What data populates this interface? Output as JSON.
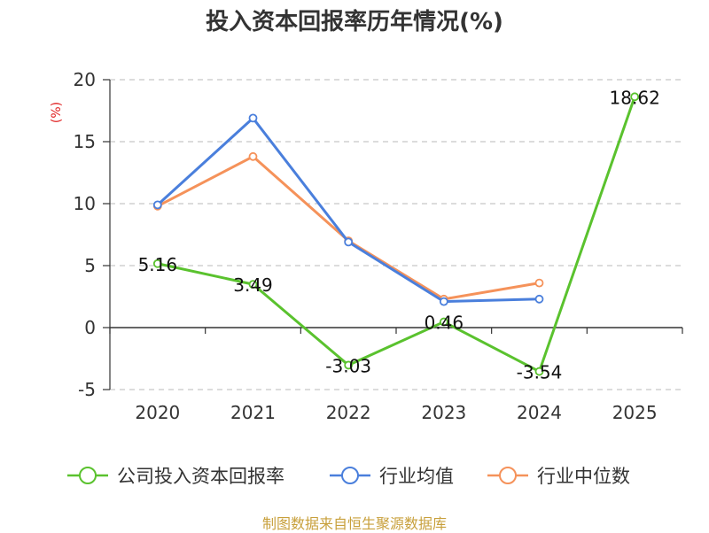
{
  "title": "投入资本回报率历年情况(%)",
  "source": "制图数据来自恒生聚源数据库",
  "chart_data": {
    "type": "line",
    "title": "投入资本回报率历年情况(%)",
    "ylabel": "(%)",
    "categories": [
      "2020",
      "2021",
      "2022",
      "2023",
      "2024",
      "2025"
    ],
    "ylim": [
      -5,
      20
    ],
    "yticks": [
      -5,
      0,
      5,
      10,
      15,
      20
    ],
    "grid": true,
    "legend_position": "bottom",
    "series": [
      {
        "name": "公司投入资本回报率",
        "color": "#5ac22e",
        "values": [
          5.16,
          3.49,
          -3.03,
          0.46,
          -3.54,
          18.62
        ],
        "labels": [
          "5.16",
          "3.49",
          "-3.03",
          "0.46",
          "-3.54",
          "18.62"
        ]
      },
      {
        "name": "行业均值",
        "color": "#4a7fdc",
        "values": [
          9.9,
          16.9,
          6.9,
          2.1,
          2.3,
          null
        ]
      },
      {
        "name": "行业中位数",
        "color": "#f5925a",
        "values": [
          9.8,
          13.8,
          7.0,
          2.3,
          3.6,
          null
        ]
      }
    ]
  }
}
